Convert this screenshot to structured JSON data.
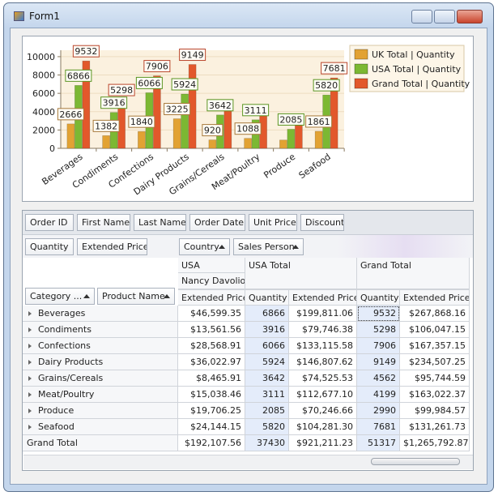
{
  "window": {
    "title": "Form1"
  },
  "chart_data": {
    "type": "bar",
    "categories": [
      "Beverages",
      "Condiments",
      "Confections",
      "Dairy Products",
      "Grains/Cereals",
      "Meat/Poultry",
      "Produce",
      "Seafood"
    ],
    "series": [
      {
        "name": "UK Total | Quantity",
        "color": "#e2a233",
        "values": [
          2666,
          1382,
          1840,
          3225,
          920,
          1088,
          905,
          1861
        ],
        "value_labels": [
          "2666",
          "1382",
          "1840",
          "3225",
          "920",
          "1088",
          null,
          "1861"
        ]
      },
      {
        "name": "USA Total | Quantity",
        "color": "#7cb833",
        "values": [
          6866,
          3916,
          6066,
          5924,
          3642,
          3111,
          2085,
          5820
        ],
        "value_labels": [
          "6866",
          "3916",
          "6066",
          "5924",
          "3642",
          "3111",
          "2085",
          "5820"
        ]
      },
      {
        "name": "Grand Total | Quantity",
        "color": "#e2582b",
        "values": [
          9532,
          5298,
          7906,
          9149,
          4562,
          4199,
          2990,
          7681
        ],
        "value_labels": [
          "9532",
          "5298",
          "7906",
          "9149",
          null,
          null,
          null,
          "7681"
        ]
      }
    ],
    "ylim": [
      0,
      10700
    ],
    "yticks": [
      0,
      2000,
      4000,
      6000,
      8000,
      10000
    ],
    "grid": true,
    "legend": "right"
  },
  "pivot": {
    "filter_fields": [
      "Order ID",
      "First Name",
      "Last Name",
      "Order Date",
      "Unit Price",
      "Discount"
    ],
    "data_fields": [
      "Quantity",
      "Extended Price"
    ],
    "column_fields": [
      "Country",
      "Sales Person"
    ],
    "row_fields": [
      "Category ...",
      "Product Name"
    ],
    "column_headers": {
      "country": "USA",
      "sales_person": "Nancy Davolio",
      "country_total": "USA Total",
      "grand_total": "Grand Total",
      "measures": [
        "Extended Price",
        "Quantity",
        "Extended Price",
        "Quantity",
        "Extended Price"
      ]
    },
    "rows": [
      {
        "label": "Beverages",
        "cells": [
          "$46,599.35",
          "6866",
          "$199,811.06",
          "9532",
          "$267,868.16"
        ]
      },
      {
        "label": "Condiments",
        "cells": [
          "$13,561.56",
          "3916",
          "$79,746.38",
          "5298",
          "$106,047.15"
        ]
      },
      {
        "label": "Confections",
        "cells": [
          "$28,568.91",
          "6066",
          "$133,115.58",
          "7906",
          "$167,357.15"
        ]
      },
      {
        "label": "Dairy Products",
        "cells": [
          "$36,022.97",
          "5924",
          "$146,807.62",
          "9149",
          "$234,507.25"
        ]
      },
      {
        "label": "Grains/Cereals",
        "cells": [
          "$8,465.91",
          "3642",
          "$74,525.53",
          "4562",
          "$95,744.59"
        ]
      },
      {
        "label": "Meat/Poultry",
        "cells": [
          "$15,038.46",
          "3111",
          "$112,677.10",
          "4199",
          "$163,022.37"
        ]
      },
      {
        "label": "Produce",
        "cells": [
          "$19,706.25",
          "2085",
          "$70,246.66",
          "2990",
          "$99,984.57"
        ]
      },
      {
        "label": "Seafood",
        "cells": [
          "$24,144.15",
          "5820",
          "$104,281.30",
          "7681",
          "$131,261.73"
        ]
      }
    ],
    "grand_total": {
      "label": "Grand Total",
      "cells": [
        "$192,107.56",
        "37430",
        "$921,211.23",
        "51317",
        "$1,265,792.87"
      ]
    }
  }
}
